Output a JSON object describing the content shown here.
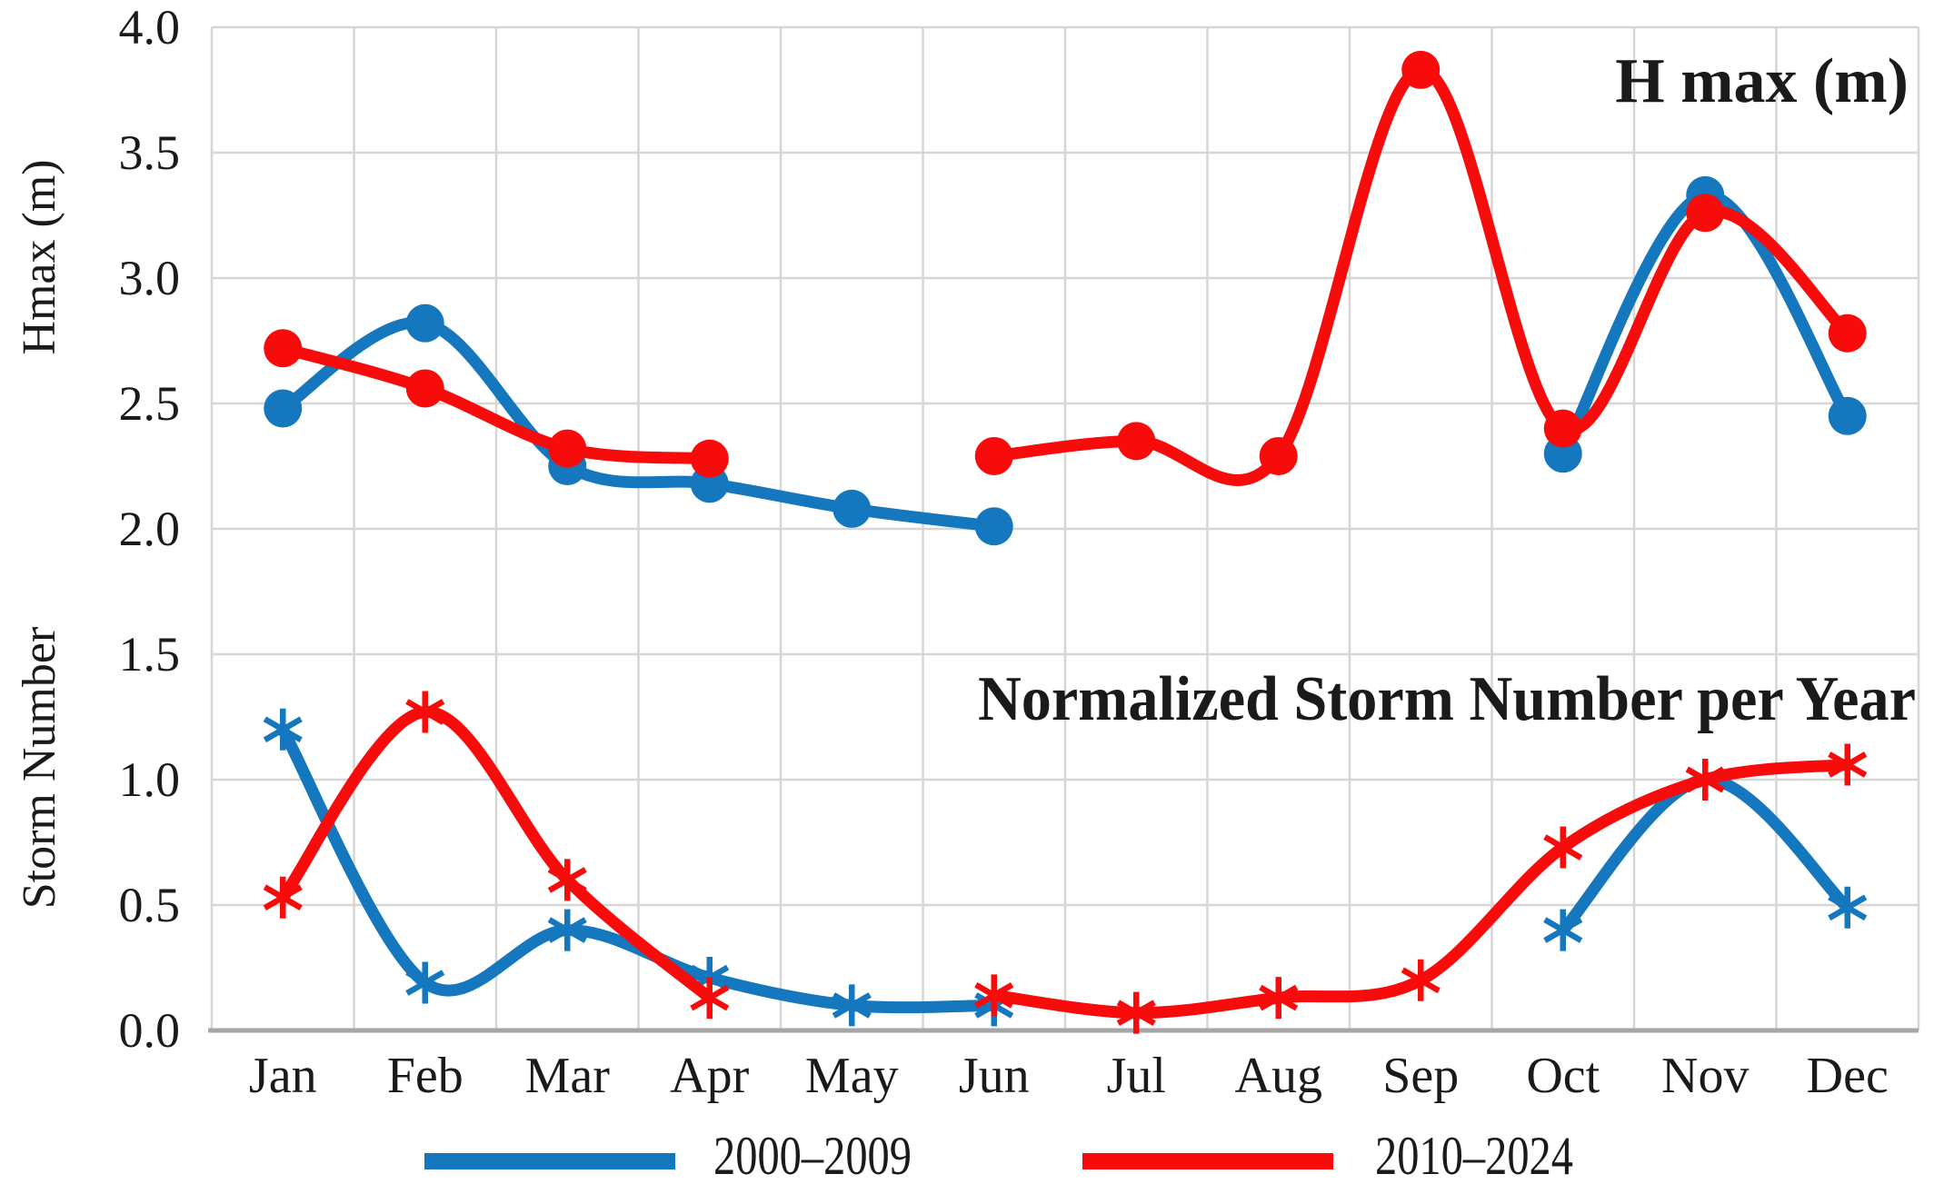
{
  "chart_data": {
    "type": "line",
    "title": "",
    "categories": [
      "Jan",
      "Feb",
      "Mar",
      "Apr",
      "May",
      "Jun",
      "Jul",
      "Aug",
      "Sep",
      "Oct",
      "Nov",
      "Dec"
    ],
    "y_ticks": [
      "4.0",
      "3.5",
      "3.0",
      "2.5",
      "2.0",
      "1.5",
      "1.0",
      "0.5",
      "0.0"
    ],
    "ylim": [
      0.0,
      4.0
    ],
    "grid": true,
    "legend_position": "bottom",
    "axis_labels": {
      "upper": "Hmax (m)",
      "lower": "Storm Number"
    },
    "annotations": [
      {
        "text": "H max (m)"
      },
      {
        "text": "Normalized Storm Number per Year"
      }
    ],
    "legend": [
      {
        "label": "2000–2009",
        "color": "#1577BE"
      },
      {
        "label": "2010–2024",
        "color": "#F80B0B"
      }
    ],
    "series": [
      {
        "name": "2000–2009",
        "group": "hmax",
        "color": "#1577BE",
        "marker": "circle",
        "values": [
          2.48,
          2.82,
          2.25,
          2.18,
          2.08,
          2.01,
          null,
          null,
          null,
          2.3,
          3.33,
          2.45
        ]
      },
      {
        "name": "2010–2024",
        "group": "hmax",
        "color": "#F80B0B",
        "marker": "circle",
        "values": [
          2.72,
          2.56,
          2.32,
          2.28,
          null,
          2.29,
          2.35,
          2.29,
          3.83,
          2.4,
          3.26,
          2.78
        ]
      },
      {
        "name": "2000–2009",
        "group": "storm",
        "color": "#1577BE",
        "marker": "asterisk",
        "values": [
          1.2,
          0.19,
          0.4,
          0.21,
          0.1,
          0.1,
          null,
          null,
          null,
          0.4,
          1.0,
          0.49
        ]
      },
      {
        "name": "2010–2024",
        "group": "storm",
        "color": "#F80B0B",
        "marker": "asterisk",
        "values": [
          0.53,
          1.27,
          0.6,
          0.13,
          null,
          0.14,
          0.07,
          0.13,
          0.2,
          0.73,
          1.0,
          1.06
        ]
      }
    ],
    "colors": {
      "blue": "#1577BE",
      "red": "#F80B0B",
      "gridline": "#D6D6D6",
      "axis_line": "#A6A6A6",
      "text": "#1A1A1A"
    }
  }
}
